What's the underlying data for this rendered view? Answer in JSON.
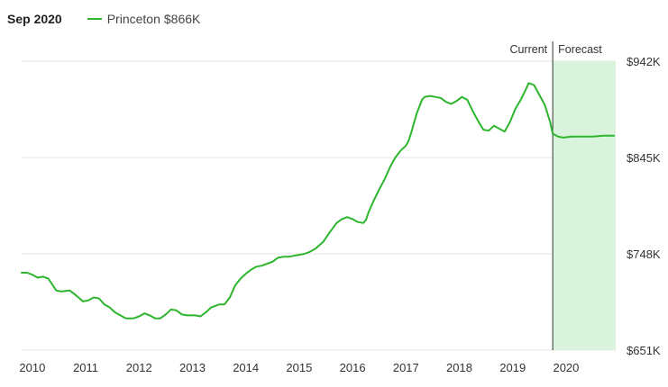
{
  "header": {
    "date": "Sep 2020",
    "legend_name": "Princeton",
    "legend_value": "$866K"
  },
  "colors": {
    "line": "#2db52d",
    "forecast_fill": "#d9f3dc",
    "grid": "#e6e6e6",
    "divider": "#333333"
  },
  "chart_data": {
    "type": "line",
    "title": "",
    "xlabel": "",
    "ylabel": "",
    "grid": "horizontal",
    "y_axis_side": "right",
    "xlim": [
      2009.8,
      2020.93
    ],
    "ylim": [
      651,
      942
    ],
    "x_ticks": [
      2010,
      2011,
      2012,
      2013,
      2014,
      2015,
      2016,
      2017,
      2018,
      2019,
      2020
    ],
    "x_tick_labels": [
      "2010",
      "2011",
      "2012",
      "2013",
      "2014",
      "2015",
      "2016",
      "2017",
      "2018",
      "2019",
      "2020"
    ],
    "y_ticks": [
      942,
      845,
      748,
      651
    ],
    "y_tick_labels": [
      "$942K",
      "$845K",
      "$748K",
      "$651K"
    ],
    "current_label": "Current",
    "forecast_label": "Forecast",
    "current_x": 2019.75,
    "series": [
      {
        "name": "Princeton",
        "points": [
          [
            2009.8,
            729
          ],
          [
            2009.9,
            729
          ],
          [
            2010.0,
            727
          ],
          [
            2010.1,
            724
          ],
          [
            2010.2,
            725
          ],
          [
            2010.3,
            723
          ],
          [
            2010.45,
            711
          ],
          [
            2010.55,
            710
          ],
          [
            2010.7,
            711
          ],
          [
            2010.8,
            707
          ],
          [
            2010.95,
            700
          ],
          [
            2011.05,
            701
          ],
          [
            2011.15,
            704
          ],
          [
            2011.25,
            703
          ],
          [
            2011.35,
            697
          ],
          [
            2011.45,
            694
          ],
          [
            2011.55,
            689
          ],
          [
            2011.65,
            686
          ],
          [
            2011.75,
            683
          ],
          [
            2011.9,
            683
          ],
          [
            2012.0,
            685
          ],
          [
            2012.1,
            688
          ],
          [
            2012.2,
            686
          ],
          [
            2012.3,
            683
          ],
          [
            2012.4,
            683
          ],
          [
            2012.5,
            687
          ],
          [
            2012.6,
            692
          ],
          [
            2012.7,
            691
          ],
          [
            2012.8,
            687
          ],
          [
            2012.9,
            686
          ],
          [
            2013.05,
            686
          ],
          [
            2013.15,
            685
          ],
          [
            2013.25,
            689
          ],
          [
            2013.35,
            694
          ],
          [
            2013.5,
            697
          ],
          [
            2013.6,
            697
          ],
          [
            2013.7,
            704
          ],
          [
            2013.8,
            716
          ],
          [
            2013.9,
            723
          ],
          [
            2014.0,
            728
          ],
          [
            2014.1,
            732
          ],
          [
            2014.2,
            735
          ],
          [
            2014.3,
            736
          ],
          [
            2014.4,
            738
          ],
          [
            2014.5,
            740
          ],
          [
            2014.6,
            744
          ],
          [
            2014.7,
            745
          ],
          [
            2014.8,
            745
          ],
          [
            2014.9,
            746
          ],
          [
            2015.0,
            747
          ],
          [
            2015.1,
            748
          ],
          [
            2015.2,
            750
          ],
          [
            2015.3,
            753
          ],
          [
            2015.45,
            760
          ],
          [
            2015.55,
            768
          ],
          [
            2015.7,
            779
          ],
          [
            2015.8,
            783
          ],
          [
            2015.9,
            785
          ],
          [
            2016.0,
            783
          ],
          [
            2016.1,
            780
          ],
          [
            2016.2,
            779
          ],
          [
            2016.25,
            782
          ],
          [
            2016.3,
            790
          ],
          [
            2016.4,
            802
          ],
          [
            2016.5,
            813
          ],
          [
            2016.6,
            823
          ],
          [
            2016.7,
            835
          ],
          [
            2016.8,
            845
          ],
          [
            2016.9,
            852
          ],
          [
            2017.0,
            857
          ],
          [
            2017.05,
            862
          ],
          [
            2017.1,
            870
          ],
          [
            2017.2,
            889
          ],
          [
            2017.3,
            903
          ],
          [
            2017.35,
            906
          ],
          [
            2017.45,
            907
          ],
          [
            2017.55,
            906
          ],
          [
            2017.65,
            905
          ],
          [
            2017.75,
            901
          ],
          [
            2017.85,
            899
          ],
          [
            2017.95,
            902
          ],
          [
            2018.05,
            906
          ],
          [
            2018.15,
            903
          ],
          [
            2018.25,
            892
          ],
          [
            2018.35,
            882
          ],
          [
            2018.45,
            873
          ],
          [
            2018.55,
            872
          ],
          [
            2018.65,
            877
          ],
          [
            2018.75,
            874
          ],
          [
            2018.85,
            871
          ],
          [
            2018.95,
            881
          ],
          [
            2019.05,
            894
          ],
          [
            2019.15,
            903
          ],
          [
            2019.25,
            914
          ],
          [
            2019.3,
            920
          ],
          [
            2019.4,
            918
          ],
          [
            2019.5,
            908
          ],
          [
            2019.6,
            898
          ],
          [
            2019.7,
            881
          ],
          [
            2019.75,
            869
          ],
          [
            2019.85,
            866
          ],
          [
            2019.95,
            865
          ],
          [
            2020.1,
            866
          ],
          [
            2020.3,
            866
          ],
          [
            2020.5,
            866
          ],
          [
            2020.7,
            867
          ],
          [
            2020.9,
            867
          ]
        ]
      }
    ]
  }
}
